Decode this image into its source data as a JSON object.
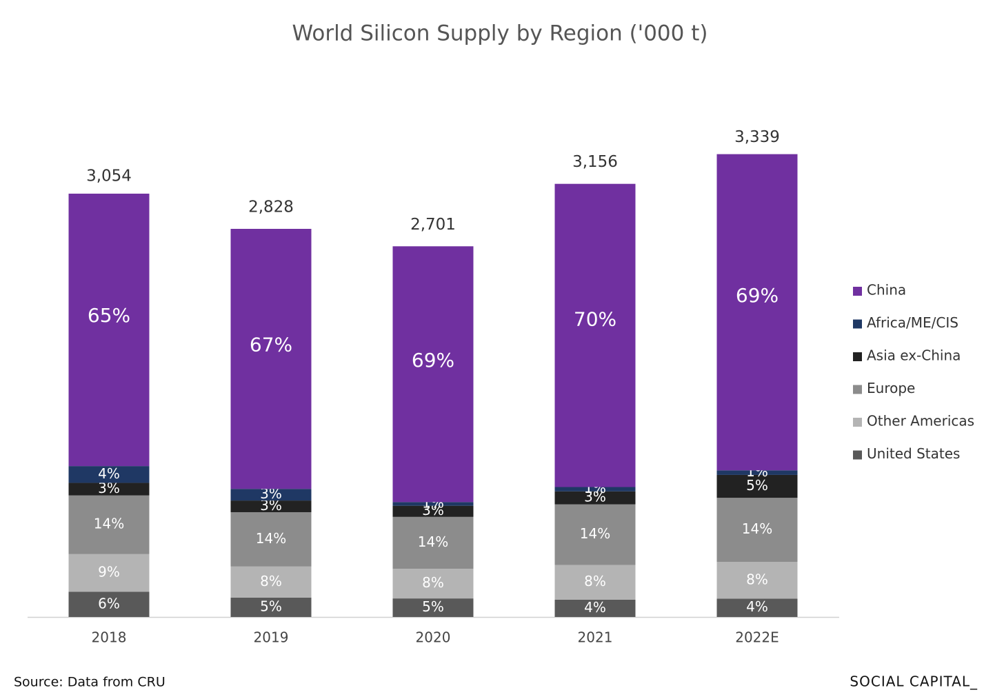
{
  "chart_data": {
    "type": "stacked_bar",
    "title": "World Silicon Supply by Region  ('000 t)",
    "categories": [
      "2018",
      "2019",
      "2020",
      "2021",
      "2022E"
    ],
    "totals": {
      "values": [
        3054,
        2828,
        2701,
        3156,
        3339
      ],
      "value_labels": [
        "3,054",
        "2,828",
        "2,701",
        "3,156",
        "3,339"
      ]
    },
    "series": [
      {
        "name": "China",
        "color": "#7030a0",
        "values": [
          65,
          67,
          69,
          70,
          69
        ],
        "value_labels": [
          "65%",
          "67%",
          "69%",
          "70%",
          "69%"
        ]
      },
      {
        "name": "Africa/ME/CIS",
        "color": "#1f3864",
        "values": [
          4,
          3,
          1,
          1,
          1
        ],
        "value_labels": [
          "4%",
          "3%",
          "1%",
          "1%",
          "1%"
        ]
      },
      {
        "name": "Asia ex-China",
        "color": "#222222",
        "values": [
          3,
          3,
          3,
          3,
          5
        ],
        "value_labels": [
          "3%",
          "3%",
          "3%",
          "3%",
          "5%"
        ]
      },
      {
        "name": "Europe",
        "color": "#8c8c8c",
        "values": [
          14,
          14,
          14,
          14,
          14
        ],
        "value_labels": [
          "14%",
          "14%",
          "14%",
          "14%",
          "14%"
        ]
      },
      {
        "name": "Other Americas",
        "color": "#b4b4b4",
        "values": [
          9,
          8,
          8,
          8,
          8
        ],
        "value_labels": [
          "9%",
          "8%",
          "8%",
          "8%",
          "8%"
        ]
      },
      {
        "name": "United States",
        "color": "#595959",
        "values": [
          6,
          5,
          5,
          4,
          4
        ],
        "value_labels": [
          "6%",
          "5%",
          "5%",
          "4%",
          "4%"
        ]
      }
    ],
    "legend": "right",
    "source": "Source: Data from CRU",
    "brand": "SOCIAL CAPITAL_"
  }
}
